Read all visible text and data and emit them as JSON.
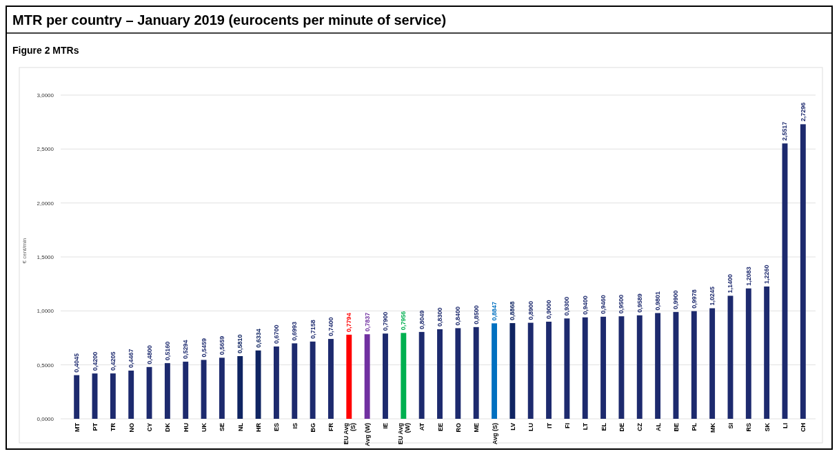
{
  "chart_data": {
    "type": "bar",
    "title": "MTR per country – January 2019 (eurocents per minute of service)",
    "subtitle": "Figure 2 MTRs",
    "ylabel": "€ cent/min",
    "categories": [
      "MT",
      "PT",
      "TR",
      "NO",
      "CY",
      "DK",
      "HU",
      "UK",
      "SE",
      "NL",
      "HR",
      "ES",
      "IS",
      "BG",
      "FR",
      "EU Avg (S)",
      "Avg (W)",
      "IE",
      "EU Avg (W)",
      "AT",
      "EE",
      "RO",
      "ME",
      "Avg (S)",
      "LV",
      "LU",
      "IT",
      "FI",
      "LT",
      "EL",
      "DE",
      "CZ",
      "AL",
      "BE",
      "PL",
      "MK",
      "SI",
      "RS",
      "SK",
      "LI",
      "CH"
    ],
    "values": [
      0.4045,
      0.42,
      0.4205,
      0.4467,
      0.48,
      0.516,
      0.5294,
      0.5459,
      0.5659,
      0.581,
      0.6334,
      0.67,
      0.6993,
      0.7158,
      0.74,
      0.7794,
      0.7837,
      0.79,
      0.7956,
      0.8049,
      0.83,
      0.84,
      0.85,
      0.8847,
      0.8868,
      0.89,
      0.9,
      0.93,
      0.94,
      0.946,
      0.95,
      0.9589,
      0.9801,
      0.99,
      0.9978,
      1.0245,
      1.14,
      1.2083,
      1.226,
      2.5517,
      2.7296
    ],
    "value_labels": [
      "0,4045",
      "0,4200",
      "0,4205",
      "0,4467",
      "0,4800",
      "0,5160",
      "0,5294",
      "0,5459",
      "0,5659",
      "0,5810",
      "0,6334",
      "0,6700",
      "0,6993",
      "0,7158",
      "0,7400",
      "0,7794",
      "0,7837",
      "0,7900",
      "0,7956",
      "0,8049",
      "0,8300",
      "0,8400",
      "0,8500",
      "0,8847",
      "0,8868",
      "0,8900",
      "0,9000",
      "0,9300",
      "0,9400",
      "0,9460",
      "0,9500",
      "0,9589",
      "0,9801",
      "0,9900",
      "0,9978",
      "1,0245",
      "1,1400",
      "1,2083",
      "1,2260",
      "2,5517",
      "2,7296"
    ],
    "colors": [
      "#1d2a6e",
      "#1d2a6e",
      "#1d2a6e",
      "#1d2a6e",
      "#1d2a6e",
      "#1d2a6e",
      "#1d2a6e",
      "#1d2a6e",
      "#1d2a6e",
      "#0f2462",
      "#0f2462",
      "#1d2a6e",
      "#1d2a6e",
      "#1d2a6e",
      "#1d2a6e",
      "#ff0000",
      "#7030a0",
      "#1d2a6e",
      "#00b050",
      "#1d2a6e",
      "#1d2a6e",
      "#1d2a6e",
      "#1d2a6e",
      "#0070c0",
      "#0f2462",
      "#1d2a6e",
      "#1d2a6e",
      "#1d2a6e",
      "#1d2a6e",
      "#1d2a6e",
      "#1d2a6e",
      "#1d2a6e",
      "#1d2a6e",
      "#1d2a6e",
      "#1d2a6e",
      "#1d2a6e",
      "#1d2a6e",
      "#1d2a6e",
      "#1d2a6e",
      "#1d2a6e",
      "#1d2a6e"
    ],
    "ylim": [
      0,
      3
    ],
    "yticks": [
      {
        "value": 0,
        "label": "0,0000"
      },
      {
        "value": 0.5,
        "label": "0,5000"
      },
      {
        "value": 1,
        "label": "1,0000"
      },
      {
        "value": 1.5,
        "label": "1,5000"
      },
      {
        "value": 2,
        "label": "2,0000"
      },
      {
        "value": 2.5,
        "label": "2,5000"
      },
      {
        "value": 3,
        "label": "3,0000"
      }
    ],
    "grid": "y"
  }
}
